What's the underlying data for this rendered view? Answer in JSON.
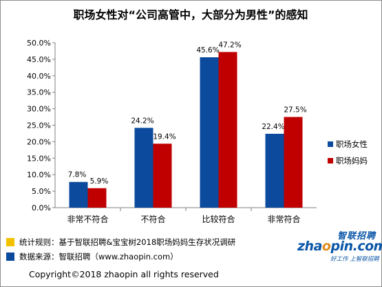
{
  "chart_data": {
    "type": "bar",
    "title": "职场女性对“公司高管中，大部分为男性”的感知",
    "categories": [
      "非常不符合",
      "不符合",
      "比较符合",
      "非常符合"
    ],
    "series": [
      {
        "name": "职场女性",
        "color": "#0b4a9c",
        "values": [
          7.8,
          24.2,
          45.6,
          22.4
        ],
        "labels": [
          "7.8%",
          "24.2%",
          "45.6%",
          "22.4%"
        ]
      },
      {
        "name": "职场妈妈",
        "color": "#c00000",
        "values": [
          5.9,
          19.4,
          47.2,
          27.5
        ],
        "labels": [
          "5.9%",
          "19.4%",
          "47.2%",
          "27.5%"
        ]
      }
    ],
    "ylim": [
      0,
      50
    ],
    "yticks": [
      "0.0%",
      "5.0%",
      "10.0%",
      "15.0%",
      "20.0%",
      "25.0%",
      "30.0%",
      "35.0%",
      "40.0%",
      "45.0%",
      "50.0%"
    ],
    "grid": false,
    "legend_position": "right"
  },
  "footer": {
    "rule_text": "统计规则：基于智联招聘&宝宝树2018职场妈妈生存状况调研",
    "source_text": "数据来源：智联招聘（www.zhaopin.com）",
    "rule_color": "#f2c200",
    "source_color": "#0b4a9c",
    "copyright": "Copyright©2018 zhaopin all rights reserved"
  },
  "logo": {
    "top": "智联招聘",
    "main_a": "zha",
    "main_o": "o",
    "main_b": "pin.com",
    "slogan": "好工作 上智联招聘"
  }
}
